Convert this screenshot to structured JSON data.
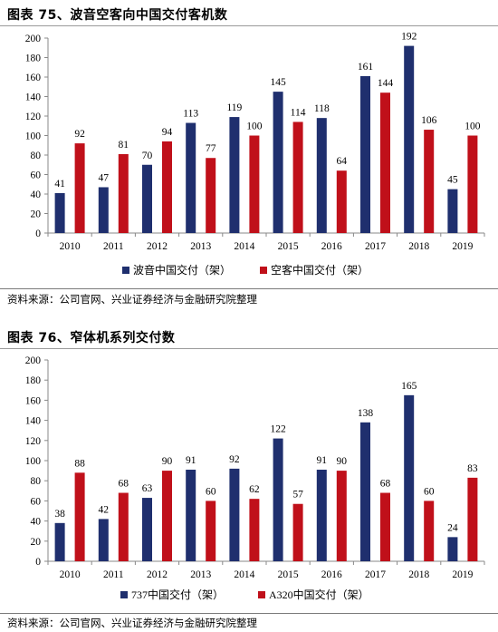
{
  "chart_data": [
    {
      "type": "bar",
      "title": "图表 75、波音空客向中国交付客机数",
      "categories": [
        "2010",
        "2011",
        "2012",
        "2013",
        "2014",
        "2015",
        "2016",
        "2017",
        "2018",
        "2019"
      ],
      "series": [
        {
          "name": "波音中国交付（架）",
          "color": "#1f2f6e",
          "values": [
            41,
            47,
            70,
            113,
            119,
            145,
            118,
            161,
            192,
            45
          ]
        },
        {
          "name": "空客中国交付（架）",
          "color": "#c0101a",
          "values": [
            92,
            81,
            94,
            77,
            100,
            114,
            64,
            144,
            106,
            100
          ]
        }
      ],
      "ylim": [
        0,
        200
      ],
      "yticks": [
        0,
        20,
        40,
        60,
        80,
        100,
        120,
        140,
        160,
        180,
        200
      ],
      "legend_position": "bottom",
      "source": "资料来源：公司官网、兴业证券经济与金融研究院整理"
    },
    {
      "type": "bar",
      "title": "图表 76、窄体机系列交付数",
      "categories": [
        "2010",
        "2011",
        "2012",
        "2013",
        "2014",
        "2015",
        "2016",
        "2017",
        "2018",
        "2019"
      ],
      "series": [
        {
          "name": "737中国交付（架）",
          "color": "#1f2f6e",
          "values": [
            38,
            42,
            63,
            91,
            92,
            122,
            91,
            138,
            165,
            24
          ]
        },
        {
          "name": "A320中国交付（架）",
          "color": "#c0101a",
          "values": [
            88,
            68,
            90,
            60,
            62,
            57,
            90,
            68,
            60,
            83
          ]
        }
      ],
      "ylim": [
        0,
        200
      ],
      "yticks": [
        0,
        20,
        40,
        60,
        80,
        100,
        120,
        140,
        160,
        180,
        200
      ],
      "legend_position": "bottom",
      "source": "资料来源：公司官网、兴业证券经济与金融研究院整理"
    }
  ]
}
